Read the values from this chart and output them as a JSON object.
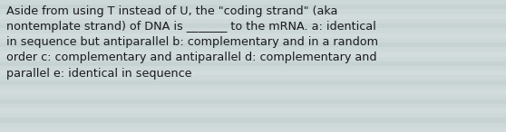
{
  "text": "Aside from using T instead of U, the \"coding strand\" (aka\nnontemplate strand) of DNA is _______ to the mRNA. a: identical\nin sequence but antiparallel b: complementary and in a random\norder c: complementary and antiparallel d: complementary and\nparallel e: identical in sequence",
  "background_color": "#cdd8d8",
  "stripe_color_light": "#d6e0e0",
  "stripe_color_dark": "#c4d0d0",
  "text_color": "#1a1a1a",
  "font_size": 9.2,
  "fig_width": 5.58,
  "fig_height": 1.46,
  "dpi": 100
}
